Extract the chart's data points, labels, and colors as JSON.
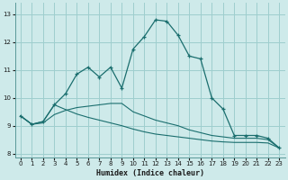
{
  "title": "",
  "xlabel": "Humidex (Indice chaleur)",
  "background_color": "#ceeaea",
  "grid_color": "#9ecece",
  "line_color": "#1a6e6e",
  "xlim": [
    -0.5,
    23.5
  ],
  "ylim": [
    7.85,
    13.4
  ],
  "xticks": [
    0,
    1,
    2,
    3,
    4,
    5,
    6,
    7,
    8,
    9,
    10,
    11,
    12,
    13,
    14,
    15,
    16,
    17,
    18,
    19,
    20,
    21,
    22,
    23
  ],
  "yticks": [
    8,
    9,
    10,
    11,
    12,
    13
  ],
  "curve1_x": [
    0,
    1,
    2,
    3,
    4,
    5,
    6,
    7,
    8,
    9,
    10,
    11,
    12,
    13,
    14,
    15,
    16,
    17,
    18,
    19,
    20,
    21,
    22,
    23
  ],
  "curve1_y": [
    9.35,
    9.05,
    9.15,
    9.75,
    10.15,
    10.85,
    11.1,
    10.75,
    11.1,
    10.35,
    11.75,
    12.2,
    12.8,
    12.75,
    12.25,
    11.5,
    11.4,
    10.0,
    9.6,
    8.65,
    8.65,
    8.65,
    8.55,
    8.2
  ],
  "curve2_x": [
    0,
    1,
    2,
    3,
    4,
    5,
    6,
    7,
    8,
    9,
    10,
    11,
    12,
    13,
    14,
    15,
    16,
    17,
    18,
    19,
    20,
    21,
    22,
    23
  ],
  "curve2_y": [
    9.35,
    9.05,
    9.1,
    9.4,
    9.55,
    9.65,
    9.7,
    9.75,
    9.8,
    9.8,
    9.5,
    9.35,
    9.2,
    9.1,
    9.0,
    8.85,
    8.75,
    8.65,
    8.6,
    8.55,
    8.55,
    8.55,
    8.5,
    8.2
  ],
  "curve3_x": [
    0,
    1,
    2,
    3,
    4,
    5,
    6,
    7,
    8,
    9,
    10,
    11,
    12,
    13,
    14,
    15,
    16,
    17,
    18,
    19,
    20,
    21,
    22,
    23
  ],
  "curve3_y": [
    9.35,
    9.05,
    9.15,
    9.75,
    9.58,
    9.42,
    9.3,
    9.2,
    9.1,
    9.0,
    8.88,
    8.78,
    8.7,
    8.65,
    8.6,
    8.55,
    8.5,
    8.45,
    8.42,
    8.4,
    8.4,
    8.4,
    8.38,
    8.2
  ]
}
